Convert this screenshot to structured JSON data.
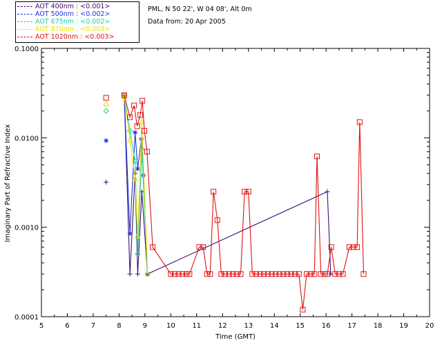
{
  "header": {
    "site": "PML, N 50 22', W 04 08', Alt 0m",
    "date": "Data from: 20 Apr 2005"
  },
  "legend": [
    {
      "label": "AOT  400nm : <0.001>",
      "color": "#3b0a7a"
    },
    {
      "label": "AOT  500nm : <0.002>",
      "color": "#1c35d6"
    },
    {
      "label": "AOT  675nm : <0.002>",
      "color": "#1fcfa0"
    },
    {
      "label": "AOT  870nm : <0.003>",
      "color": "#e8e000"
    },
    {
      "label": "AOT 1020nm : <0.003>",
      "color": "#e01010"
    }
  ],
  "chart_data": {
    "type": "line",
    "xlabel": "Time (GMT)",
    "ylabel": "Imaginary Part of Refractive Index",
    "xlim": [
      5,
      20
    ],
    "ylim": [
      0.0001,
      0.1
    ],
    "yscale": "log",
    "x_ticks": [
      "5",
      "6",
      "7",
      "8",
      "9",
      "10",
      "11",
      "12",
      "13",
      "14",
      "15",
      "16",
      "17",
      "18",
      "19",
      "20"
    ],
    "y_ticks": [
      "0.0001",
      "0.0010",
      "0.0100",
      "0.1000"
    ],
    "series": [
      {
        "name": "AOT  400nm : <0.001>",
        "color": "#3b0a7a",
        "marker": "plus",
        "points": [
          [
            7.5,
            0.0032
          ],
          [
            8.2,
            0.03
          ],
          [
            8.42,
            0.0003
          ],
          [
            8.62,
            0.004
          ],
          [
            8.72,
            0.0003
          ],
          [
            8.88,
            0.0025
          ],
          [
            9.1,
            0.0003
          ],
          [
            16.05,
            0.0025
          ],
          [
            16.18,
            0.0003
          ]
        ]
      },
      {
        "name": "AOT  500nm : <0.002>",
        "color": "#1c35d6",
        "marker": "star",
        "points": [
          [
            7.5,
            0.0093
          ],
          [
            8.2,
            0.03
          ],
          [
            8.42,
            0.00085
          ],
          [
            8.62,
            0.0115
          ],
          [
            8.72,
            0.0045
          ],
          [
            8.86,
            0.0097
          ],
          [
            8.94,
            0.0038
          ],
          [
            9.1,
            0.0003
          ]
        ]
      },
      {
        "name": "AOT  675nm : <0.002>",
        "color": "#1fcfa0",
        "marker": "diamond",
        "points": [
          [
            7.5,
            0.02
          ],
          [
            8.2,
            0.029
          ],
          [
            8.42,
            0.012
          ],
          [
            8.62,
            0.0055
          ],
          [
            8.72,
            0.0005
          ],
          [
            8.88,
            0.0075
          ],
          [
            9.1,
            0.0003
          ]
        ]
      },
      {
        "name": "AOT  870nm : <0.003>",
        "color": "#e8e000",
        "marker": "triangle",
        "points": [
          [
            7.5,
            0.024
          ],
          [
            8.2,
            0.029
          ],
          [
            8.42,
            0.0095
          ],
          [
            8.62,
            0.0035
          ],
          [
            8.72,
            0.0008
          ],
          [
            8.88,
            0.015
          ],
          [
            9.1,
            0.0003
          ]
        ]
      },
      {
        "name": "AOT 1020nm : <0.003>",
        "color": "#e01010",
        "marker": "square",
        "points": [
          [
            7.5,
            0.028
          ],
          [
            8.2,
            0.03
          ],
          [
            8.42,
            0.017
          ],
          [
            8.58,
            0.023
          ],
          [
            8.7,
            0.0135
          ],
          [
            8.82,
            0.018
          ],
          [
            8.9,
            0.026
          ],
          [
            8.98,
            0.012
          ],
          [
            9.08,
            0.007
          ],
          [
            9.3,
            0.0006
          ],
          [
            10.0,
            0.0003
          ],
          [
            10.15,
            0.0003
          ],
          [
            10.3,
            0.0003
          ],
          [
            10.45,
            0.0003
          ],
          [
            10.6,
            0.0003
          ],
          [
            10.72,
            0.0003
          ],
          [
            11.1,
            0.0006
          ],
          [
            11.25,
            0.0006
          ],
          [
            11.4,
            0.0003
          ],
          [
            11.52,
            0.0003
          ],
          [
            11.65,
            0.0025
          ],
          [
            11.8,
            0.0012
          ],
          [
            11.95,
            0.0003
          ],
          [
            12.1,
            0.0003
          ],
          [
            12.25,
            0.0003
          ],
          [
            12.4,
            0.0003
          ],
          [
            12.55,
            0.0003
          ],
          [
            12.7,
            0.0003
          ],
          [
            12.85,
            0.0025
          ],
          [
            13.0,
            0.0025
          ],
          [
            13.15,
            0.0003
          ],
          [
            13.3,
            0.0003
          ],
          [
            13.45,
            0.0003
          ],
          [
            13.6,
            0.0003
          ],
          [
            13.75,
            0.0003
          ],
          [
            13.9,
            0.0003
          ],
          [
            14.05,
            0.0003
          ],
          [
            14.2,
            0.0003
          ],
          [
            14.35,
            0.0003
          ],
          [
            14.5,
            0.0003
          ],
          [
            14.65,
            0.0003
          ],
          [
            14.8,
            0.0003
          ],
          [
            14.95,
            0.0003
          ],
          [
            15.1,
            0.00012
          ],
          [
            15.25,
            0.0003
          ],
          [
            15.4,
            0.0003
          ],
          [
            15.55,
            0.0003
          ],
          [
            15.65,
            0.0062
          ],
          [
            15.8,
            0.0003
          ],
          [
            15.95,
            0.0003
          ],
          [
            16.05,
            0.0003
          ],
          [
            16.2,
            0.0006
          ],
          [
            16.35,
            0.0003
          ],
          [
            16.5,
            0.0003
          ],
          [
            16.65,
            0.0003
          ],
          [
            16.9,
            0.0006
          ],
          [
            17.05,
            0.0006
          ],
          [
            17.2,
            0.0006
          ],
          [
            17.3,
            0.015
          ],
          [
            17.45,
            0.0003
          ]
        ]
      }
    ]
  }
}
